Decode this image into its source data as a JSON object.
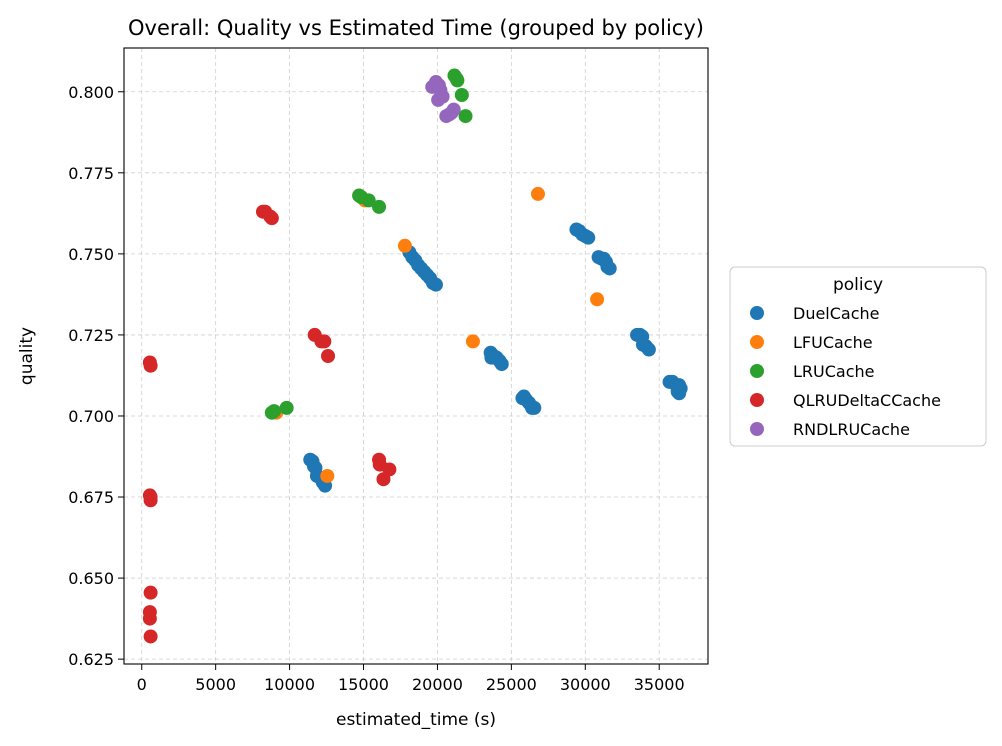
{
  "chart_data": {
    "type": "scatter",
    "title": "Overall: Quality vs Estimated Time (grouped by policy)",
    "xlabel": "estimated_time (s)",
    "ylabel": "quality",
    "xlim": [
      -1200,
      38300
    ],
    "ylim": [
      0.6235,
      0.8135
    ],
    "xticks": [
      0,
      5000,
      10000,
      15000,
      20000,
      25000,
      30000,
      35000
    ],
    "xtick_labels": [
      "0",
      "5000",
      "10000",
      "15000",
      "20000",
      "25000",
      "30000",
      "35000"
    ],
    "yticks": [
      0.625,
      0.65,
      0.675,
      0.7,
      0.725,
      0.75,
      0.775,
      0.8
    ],
    "ytick_labels": [
      "0.625",
      "0.650",
      "0.675",
      "0.700",
      "0.725",
      "0.750",
      "0.775",
      "0.800"
    ],
    "grid": true,
    "legend": {
      "title": "policy",
      "placement": "center-right outside"
    },
    "series": [
      {
        "name": "DuelCache",
        "color": "#1f77b4",
        "points": [
          [
            11400,
            0.6865
          ],
          [
            11550,
            0.686
          ],
          [
            11650,
            0.6845
          ],
          [
            11750,
            0.684
          ],
          [
            11850,
            0.6815
          ],
          [
            12050,
            0.681
          ],
          [
            12250,
            0.6795
          ],
          [
            12400,
            0.6785
          ],
          [
            18100,
            0.7505
          ],
          [
            18300,
            0.749
          ],
          [
            18500,
            0.748
          ],
          [
            18700,
            0.7465
          ],
          [
            18900,
            0.7455
          ],
          [
            19100,
            0.7445
          ],
          [
            19300,
            0.7435
          ],
          [
            19500,
            0.7425
          ],
          [
            19700,
            0.741
          ],
          [
            19900,
            0.7405
          ],
          [
            23600,
            0.7195
          ],
          [
            23800,
            0.7185
          ],
          [
            24000,
            0.718
          ],
          [
            24200,
            0.717
          ],
          [
            24350,
            0.716
          ],
          [
            23650,
            0.718
          ],
          [
            25750,
            0.7055
          ],
          [
            25850,
            0.706
          ],
          [
            26000,
            0.705
          ],
          [
            26200,
            0.704
          ],
          [
            26400,
            0.7025
          ],
          [
            26550,
            0.7025
          ],
          [
            29400,
            0.7575
          ],
          [
            29600,
            0.757
          ],
          [
            29800,
            0.756
          ],
          [
            30000,
            0.7555
          ],
          [
            30200,
            0.755
          ],
          [
            30900,
            0.749
          ],
          [
            31100,
            0.7485
          ],
          [
            31250,
            0.7485
          ],
          [
            31400,
            0.7475
          ],
          [
            31500,
            0.746
          ],
          [
            31650,
            0.7455
          ],
          [
            33500,
            0.725
          ],
          [
            33700,
            0.725
          ],
          [
            33850,
            0.7245
          ],
          [
            33900,
            0.722
          ],
          [
            34100,
            0.7215
          ],
          [
            34300,
            0.7205
          ],
          [
            35700,
            0.7105
          ],
          [
            35900,
            0.7105
          ],
          [
            36150,
            0.7095
          ],
          [
            36350,
            0.7095
          ],
          [
            36450,
            0.7085
          ],
          [
            36250,
            0.7075
          ],
          [
            36350,
            0.707
          ]
        ]
      },
      {
        "name": "LFUCache",
        "color": "#ff7f0e",
        "points": [
          [
            12550,
            0.6815
          ],
          [
            15100,
            0.7665
          ],
          [
            17800,
            0.7525
          ],
          [
            22400,
            0.723
          ],
          [
            26800,
            0.7685
          ],
          [
            30800,
            0.736
          ],
          [
            9100,
            0.701
          ]
        ]
      },
      {
        "name": "LRUCache",
        "color": "#2ca02c",
        "points": [
          [
            8800,
            0.701
          ],
          [
            8950,
            0.7015
          ],
          [
            9800,
            0.7025
          ],
          [
            14700,
            0.768
          ],
          [
            14850,
            0.7675
          ],
          [
            15350,
            0.7665
          ],
          [
            16050,
            0.7645
          ],
          [
            21150,
            0.805
          ],
          [
            21300,
            0.804
          ],
          [
            21350,
            0.8035
          ],
          [
            21650,
            0.799
          ],
          [
            21900,
            0.7925
          ]
        ]
      },
      {
        "name": "QLRUDeltaCCache",
        "color": "#d62728",
        "points": [
          [
            550,
            0.7165
          ],
          [
            600,
            0.7155
          ],
          [
            550,
            0.6755
          ],
          [
            600,
            0.675
          ],
          [
            600,
            0.674
          ],
          [
            600,
            0.6455
          ],
          [
            550,
            0.6395
          ],
          [
            550,
            0.6375
          ],
          [
            600,
            0.632
          ],
          [
            8200,
            0.763
          ],
          [
            8350,
            0.763
          ],
          [
            8700,
            0.7615
          ],
          [
            8800,
            0.761
          ],
          [
            11700,
            0.725
          ],
          [
            12150,
            0.723
          ],
          [
            12350,
            0.723
          ],
          [
            12600,
            0.7185
          ],
          [
            16050,
            0.6865
          ],
          [
            16100,
            0.685
          ],
          [
            16350,
            0.6805
          ],
          [
            16750,
            0.6835
          ]
        ]
      },
      {
        "name": "RNDLRUCache",
        "color": "#9467bd",
        "points": [
          [
            19650,
            0.8015
          ],
          [
            19900,
            0.803
          ],
          [
            20100,
            0.802
          ],
          [
            20200,
            0.8005
          ],
          [
            20050,
            0.7975
          ],
          [
            20350,
            0.7985
          ],
          [
            20600,
            0.7925
          ],
          [
            20800,
            0.793
          ],
          [
            20950,
            0.7935
          ],
          [
            21100,
            0.7945
          ]
        ]
      }
    ]
  }
}
